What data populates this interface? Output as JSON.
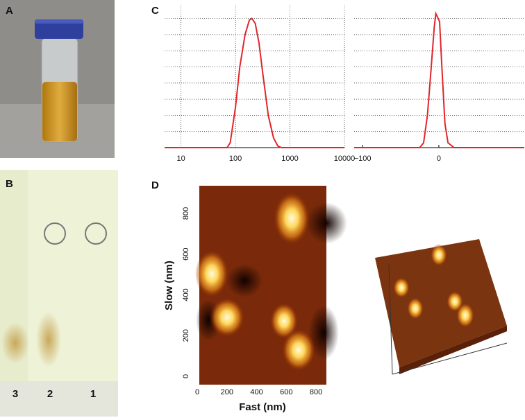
{
  "panel_labels": [
    "A",
    "B",
    "C",
    "D"
  ],
  "tlc": {
    "lanes": [
      "3",
      "2",
      "1"
    ]
  },
  "chart_data": [
    {
      "type": "line",
      "xscale": "log",
      "xlim": [
        5,
        10000
      ],
      "xticks": [
        10,
        100,
        1000,
        10000
      ],
      "ylim": [
        0,
        8.8
      ],
      "ygrid": [
        1,
        2,
        3,
        4,
        5,
        6,
        7,
        8
      ],
      "color": "#e0262a",
      "x": [
        5,
        70,
        80,
        100,
        120,
        150,
        180,
        200,
        230,
        270,
        320,
        400,
        500,
        600,
        700,
        10000
      ],
      "values": [
        0,
        0,
        0.3,
        2.5,
        5,
        7,
        7.9,
        8,
        7.7,
        6.5,
        4.5,
        2,
        0.6,
        0.1,
        0,
        0
      ]
    },
    {
      "type": "line",
      "xscale": "linear",
      "xlim": [
        -111,
        112
      ],
      "xticks": [
        {
          "value": -100,
          "label": "−100"
        },
        0
      ],
      "ylim": [
        0,
        8.8
      ],
      "ygrid": [
        1,
        2,
        3,
        4,
        5,
        6,
        7,
        8
      ],
      "color": "#e0262a",
      "x": [
        -111,
        -25,
        -20,
        -15,
        -10,
        -6,
        -4,
        -1,
        1,
        4,
        8,
        12,
        20,
        112
      ],
      "values": [
        0,
        0,
        0.3,
        2,
        5,
        7.5,
        8.3,
        8,
        7.8,
        5,
        1.5,
        0.3,
        0,
        0
      ]
    }
  ],
  "afm": {
    "xlabel": "Fast (nm)",
    "ylabel": "Slow (nm)",
    "xlim": [
      0,
      870
    ],
    "ylim": [
      -41,
      936
    ],
    "xticks": [
      0,
      200,
      400,
      600,
      800
    ],
    "yticks": [
      0,
      200,
      400,
      600,
      800
    ]
  }
}
